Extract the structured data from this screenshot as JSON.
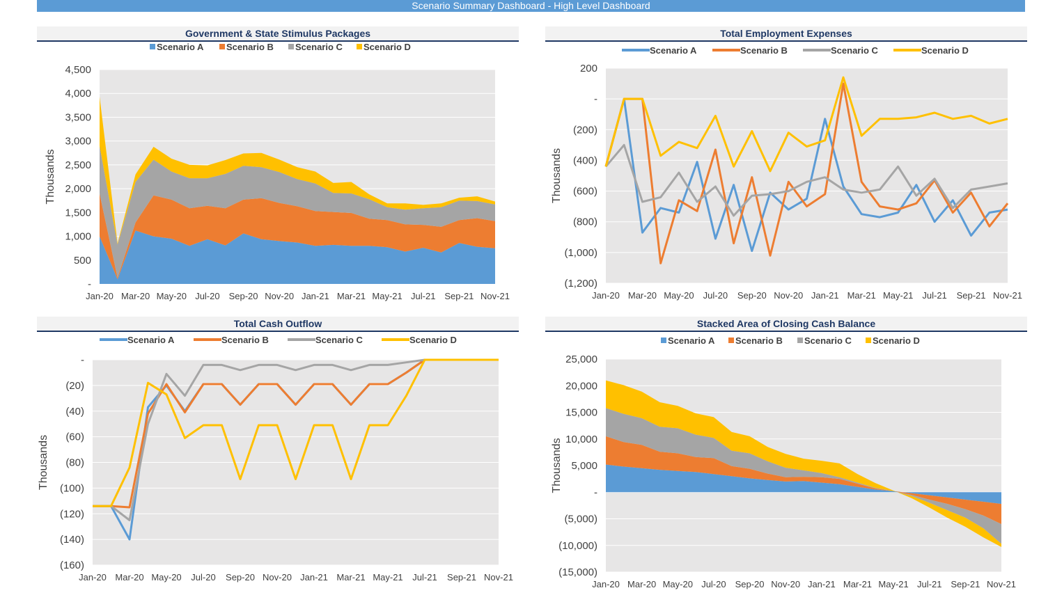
{
  "dashboard": {
    "title": "Scenario Summary Dashboard - High Level Dashboard"
  },
  "colors": {
    "a": "#5b9bd5",
    "b": "#ed7d31",
    "c": "#a5a5a5",
    "d": "#ffc000",
    "plot_bg": "#e7e6e6",
    "grid": "#ffffff"
  },
  "chart_data": [
    {
      "id": "stimulus",
      "type": "area",
      "title": "Government & State Stimulus Packages",
      "ylabel": "Thousands",
      "stacked": true,
      "legend_marker": "square",
      "ylim": [
        0,
        4500
      ],
      "yticks": [
        0,
        500,
        1000,
        1500,
        2000,
        2500,
        3000,
        3500,
        4000,
        4500
      ],
      "ytick_labels": [
        "-",
        "500",
        "1,000",
        "1,500",
        "2,000",
        "2,500",
        "3,000",
        "3,500",
        "4,000",
        "4,500"
      ],
      "x": [
        "Jan-20",
        "Feb-20",
        "Mar-20",
        "Apr-20",
        "May-20",
        "Jun-20",
        "Jul-20",
        "Aug-20",
        "Sep-20",
        "Oct-20",
        "Nov-20",
        "Dec-20",
        "Jan-21",
        "Feb-21",
        "Mar-21",
        "Apr-21",
        "May-21",
        "Jun-21",
        "Jul-21",
        "Aug-21",
        "Sep-21",
        "Oct-21",
        "Nov-21"
      ],
      "xtick_labels": [
        "Jan-20",
        "Mar-20",
        "May-20",
        "Jul-20",
        "Sep-20",
        "Nov-20",
        "Jan-21",
        "Mar-21",
        "May-21",
        "Jul-21",
        "Sep-21",
        "Nov-21"
      ],
      "series": [
        {
          "name": "Scenario A",
          "values": [
            1000,
            100,
            1120,
            1000,
            950,
            800,
            940,
            810,
            1060,
            940,
            900,
            870,
            800,
            820,
            800,
            800,
            770,
            680,
            760,
            660,
            860,
            780,
            750
          ]
        },
        {
          "name": "Scenario B",
          "values": [
            900,
            30,
            170,
            860,
            820,
            790,
            700,
            780,
            710,
            860,
            800,
            760,
            730,
            690,
            690,
            570,
            570,
            570,
            480,
            540,
            480,
            600,
            570
          ]
        },
        {
          "name": "Scenario C",
          "values": [
            1000,
            700,
            850,
            750,
            590,
            630,
            580,
            720,
            710,
            650,
            650,
            570,
            580,
            400,
            410,
            410,
            270,
            310,
            350,
            410,
            410,
            360,
            350
          ]
        },
        {
          "name": "Scenario D",
          "values": [
            1030,
            20,
            160,
            270,
            270,
            280,
            270,
            290,
            260,
            300,
            260,
            250,
            250,
            210,
            240,
            100,
            80,
            130,
            70,
            80,
            60,
            100,
            60
          ]
        }
      ]
    },
    {
      "id": "employment",
      "type": "line",
      "title": "Total Employment Expenses",
      "ylabel": "Thousands",
      "legend_marker": "line",
      "ylim": [
        -1200,
        200
      ],
      "yticks": [
        200,
        0,
        -200,
        -400,
        -600,
        -800,
        -1000,
        -1200
      ],
      "ytick_labels": [
        "200",
        "-",
        "(200)",
        "(400)",
        "(600)",
        "(800)",
        "(1,000)",
        "(1,200)"
      ],
      "x": [
        "Jan-20",
        "Feb-20",
        "Mar-20",
        "Apr-20",
        "May-20",
        "Jun-20",
        "Jul-20",
        "Aug-20",
        "Sep-20",
        "Oct-20",
        "Nov-20",
        "Dec-20",
        "Jan-21",
        "Feb-21",
        "Mar-21",
        "Apr-21",
        "May-21",
        "Jun-21",
        "Jul-21",
        "Aug-21",
        "Sep-21",
        "Oct-21",
        "Nov-21"
      ],
      "xtick_labels": [
        "Jan-20",
        "Mar-20",
        "May-20",
        "Jul-20",
        "Sep-20",
        "Nov-20",
        "Jan-21",
        "Mar-21",
        "May-21",
        "Jul-21",
        "Sep-21",
        "Nov-21"
      ],
      "series": [
        {
          "name": "Scenario A",
          "values": [
            -440,
            0,
            -870,
            -710,
            -740,
            -410,
            -910,
            -560,
            -990,
            -610,
            -720,
            -650,
            -130,
            -570,
            -750,
            -770,
            -740,
            -560,
            -800,
            -660,
            -890,
            -740,
            -720
          ]
        },
        {
          "name": "Scenario B",
          "values": [
            -440,
            0,
            0,
            -1070,
            -660,
            -730,
            -330,
            -940,
            -510,
            -1020,
            -540,
            -700,
            -620,
            100,
            -540,
            -700,
            -720,
            -680,
            -530,
            -740,
            -610,
            -830,
            -680
          ]
        },
        {
          "name": "Scenario C",
          "values": [
            -440,
            -300,
            -670,
            -640,
            -480,
            -670,
            -570,
            -760,
            -630,
            -620,
            -600,
            -540,
            -510,
            -590,
            -610,
            -590,
            -440,
            -630,
            -520,
            -710,
            -590,
            -570,
            -550
          ]
        },
        {
          "name": "Scenario D",
          "values": [
            -440,
            0,
            0,
            -370,
            -280,
            -320,
            -110,
            -440,
            -210,
            -470,
            -220,
            -310,
            -270,
            140,
            -240,
            -130,
            -130,
            -120,
            -90,
            -130,
            -110,
            -160,
            -130
          ]
        }
      ]
    },
    {
      "id": "cashoutflow",
      "type": "line",
      "title": "Total Cash Outflow",
      "ylabel": "Thousands",
      "legend_marker": "line",
      "ylim": [
        -160,
        0
      ],
      "yticks": [
        0,
        -20,
        -40,
        -60,
        -80,
        -100,
        -120,
        -140,
        -160
      ],
      "ytick_labels": [
        "-",
        "(20)",
        "(40)",
        "(60)",
        "(80)",
        "(100)",
        "(120)",
        "(140)",
        "(160)"
      ],
      "x": [
        "Jan-20",
        "Feb-20",
        "Mar-20",
        "Apr-20",
        "May-20",
        "Jun-20",
        "Jul-20",
        "Aug-20",
        "Sep-20",
        "Oct-20",
        "Nov-20",
        "Dec-20",
        "Jan-21",
        "Feb-21",
        "Mar-21",
        "Apr-21",
        "May-21",
        "Jun-21",
        "Jul-21",
        "Aug-21",
        "Sep-21",
        "Oct-21",
        "Nov-21"
      ],
      "xtick_labels": [
        "Jan-20",
        "Mar-20",
        "May-20",
        "Jul-20",
        "Sep-20",
        "Nov-20",
        "Jan-21",
        "Mar-21",
        "May-21",
        "Jul-21",
        "Sep-21",
        "Nov-21"
      ],
      "series": [
        {
          "name": "Scenario A",
          "values": [
            -114,
            -114,
            -140,
            -37,
            -20,
            -40,
            -19,
            -19,
            -35,
            -19,
            -19,
            -35,
            -19,
            -19,
            -35,
            -19,
            -19,
            -10,
            0,
            0,
            0,
            0,
            0
          ]
        },
        {
          "name": "Scenario B",
          "values": [
            -114,
            -114,
            -115,
            -42,
            -19,
            -41,
            -19,
            -19,
            -35,
            -19,
            -19,
            -35,
            -19,
            -19,
            -35,
            -19,
            -19,
            -10,
            0,
            0,
            0,
            0,
            0
          ]
        },
        {
          "name": "Scenario C",
          "values": [
            -114,
            -114,
            -125,
            -50,
            -11,
            -28,
            -4,
            -4,
            -8,
            -4,
            -4,
            -8,
            -4,
            -4,
            -8,
            -4,
            -4,
            -2,
            0,
            0,
            0,
            0,
            0
          ]
        },
        {
          "name": "Scenario D",
          "values": [
            -114,
            -114,
            -84,
            -18,
            -27,
            -61,
            -51,
            -51,
            -93,
            -51,
            -51,
            -93,
            -51,
            -51,
            -93,
            -51,
            -51,
            -28,
            0,
            0,
            0,
            0,
            0
          ]
        }
      ]
    },
    {
      "id": "closingcash",
      "type": "area",
      "title": "Stacked Area of Closing Cash Balance",
      "ylabel": "Thousands",
      "stacked": true,
      "legend_marker": "square",
      "ylim": [
        -15000,
        25000
      ],
      "yticks": [
        25000,
        20000,
        15000,
        10000,
        5000,
        0,
        -5000,
        -10000,
        -15000
      ],
      "ytick_labels": [
        "25,000",
        "20,000",
        "15,000",
        "10,000",
        "5,000",
        "-",
        "(5,000)",
        "(10,000)",
        "(15,000)"
      ],
      "x": [
        "Jan-20",
        "Feb-20",
        "Mar-20",
        "Apr-20",
        "May-20",
        "Jun-20",
        "Jul-20",
        "Aug-20",
        "Sep-20",
        "Oct-20",
        "Nov-20",
        "Dec-20",
        "Jan-21",
        "Feb-21",
        "Mar-21",
        "Apr-21",
        "May-21",
        "Jun-21",
        "Jul-21",
        "Aug-21",
        "Sep-21",
        "Oct-21",
        "Nov-21"
      ],
      "xtick_labels": [
        "Jan-20",
        "Mar-20",
        "May-20",
        "Jul-20",
        "Sep-20",
        "Nov-20",
        "Jan-21",
        "Mar-21",
        "May-21",
        "Jul-21",
        "Sep-21",
        "Nov-21"
      ],
      "series": [
        {
          "name": "Scenario A",
          "values": [
            5200,
            4800,
            4500,
            4200,
            4000,
            3800,
            3400,
            3000,
            2600,
            2300,
            2000,
            2100,
            1800,
            1500,
            1000,
            500,
            200,
            -200,
            -600,
            -1000,
            -1400,
            -1800,
            -2200
          ]
        },
        {
          "name": "Scenario B",
          "values": [
            5300,
            4600,
            4400,
            3400,
            3300,
            2800,
            3000,
            1900,
            1800,
            1200,
            800,
            800,
            1000,
            1000,
            600,
            200,
            0,
            -300,
            -800,
            -1200,
            -1800,
            -2600,
            -3800
          ]
        },
        {
          "name": "Scenario C",
          "values": [
            5300,
            5300,
            5000,
            4700,
            4700,
            4200,
            3800,
            2900,
            2900,
            2300,
            1800,
            1200,
            800,
            300,
            200,
            100,
            0,
            -200,
            -600,
            -1200,
            -1600,
            -2400,
            -3700
          ]
        },
        {
          "name": "Scenario D",
          "values": [
            5200,
            5400,
            5000,
            4600,
            4200,
            4000,
            3900,
            3500,
            3200,
            2700,
            2600,
            2200,
            2300,
            2600,
            1600,
            900,
            100,
            -400,
            -900,
            -1400,
            -1700,
            -1700,
            -600
          ]
        }
      ]
    }
  ]
}
